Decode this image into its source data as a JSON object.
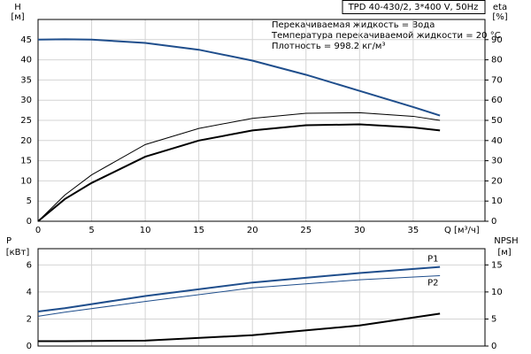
{
  "chart_data": [
    {
      "type": "line",
      "title": "TPD 40-430/2, 3*400 V, 50Hz",
      "annotations": [
        "Перекачиваемая жидкость = Вода",
        "Температура перекачиваемой жидкости = 20 °C",
        "Плотность = 998.2 кг/м³"
      ],
      "x_label": "Q [м³/ч]",
      "y_label": "H",
      "y_unit": "[м]",
      "y2_label": "eta",
      "y2_unit": "[%]",
      "xlim": [
        0,
        41.7
      ],
      "xticks": [
        0,
        5,
        10,
        15,
        20,
        25,
        30,
        35
      ],
      "ylim": [
        0,
        50
      ],
      "yticks": [
        0,
        5,
        10,
        15,
        20,
        25,
        30,
        35,
        40,
        45
      ],
      "y2lim": [
        0,
        100
      ],
      "y2ticks": [
        0,
        10,
        20,
        30,
        40,
        50,
        60,
        70,
        80,
        90
      ],
      "grid": true,
      "series": [
        {
          "color": "#1f4e8c",
          "line_width": 2,
          "x": [
            0,
            2.5,
            5,
            10,
            15,
            20,
            25,
            30,
            35,
            37.5
          ],
          "values": [
            45,
            45.1,
            45,
            44.2,
            42.5,
            39.8,
            36.3,
            32.3,
            28.3,
            26.2
          ]
        },
        {
          "color": "#000000",
          "line_width": 1,
          "axis": "y2",
          "x": [
            0,
            2.5,
            5,
            10,
            15,
            20,
            25,
            30,
            35,
            37.5
          ],
          "values": [
            0,
            13,
            23,
            38,
            46,
            51,
            53.5,
            53.8,
            52,
            50
          ]
        },
        {
          "color": "#000000",
          "line_width": 2,
          "axis": "y2",
          "x": [
            0,
            2.5,
            5,
            10,
            15,
            20,
            25,
            30,
            35,
            37.5
          ],
          "values": [
            0,
            11,
            19,
            32,
            40,
            45,
            47.6,
            48,
            46.5,
            45
          ]
        }
      ]
    },
    {
      "type": "line",
      "y_label": "P",
      "y_unit": "[кВт]",
      "y2_label": "NPSH",
      "y2_unit": "[м]",
      "xlim": [
        0,
        41.7
      ],
      "ylim": [
        0,
        7.2
      ],
      "yticks": [
        0,
        2,
        4,
        6
      ],
      "y2lim": [
        0,
        18
      ],
      "y2ticks": [
        0,
        5,
        10,
        15
      ],
      "grid": true,
      "series": [
        {
          "name": "P1",
          "color": "#1f4e8c",
          "line_width": 2,
          "x": [
            0,
            2.5,
            10,
            20,
            30,
            37.5
          ],
          "values": [
            2.55,
            2.8,
            3.7,
            4.7,
            5.4,
            5.85
          ]
        },
        {
          "name": "P2",
          "color": "#1f4e8c",
          "line_width": 1,
          "x": [
            0,
            2.5,
            10,
            20,
            30,
            37.5
          ],
          "values": [
            2.2,
            2.5,
            3.3,
            4.3,
            4.9,
            5.2
          ]
        },
        {
          "color": "#000000",
          "line_width": 2,
          "axis": "y2",
          "x": [
            0,
            2.5,
            10,
            20,
            30,
            37.5
          ],
          "values": [
            0.9,
            0.9,
            1.0,
            2.0,
            3.8,
            6.0
          ]
        }
      ]
    }
  ]
}
